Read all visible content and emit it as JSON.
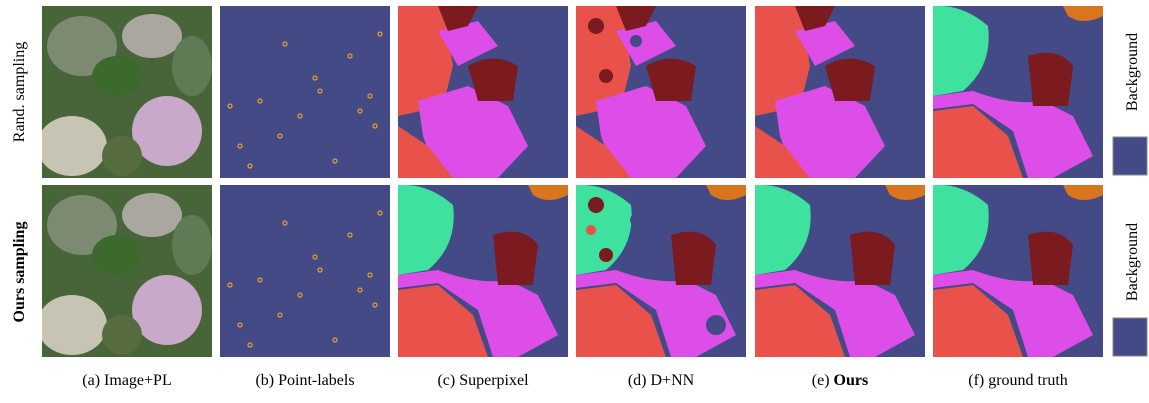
{
  "row_labels": [
    "Rand. sampling",
    "Ours sampling"
  ],
  "captions": [
    "(a) Image+PL",
    "(b) Point-labels",
    "(c) Superpixel",
    "(d) D+NN",
    {
      "prefix": "(e) ",
      "bold": "Ours"
    },
    "(f) ground truth"
  ],
  "legend": [
    "Background",
    "Background"
  ]
}
